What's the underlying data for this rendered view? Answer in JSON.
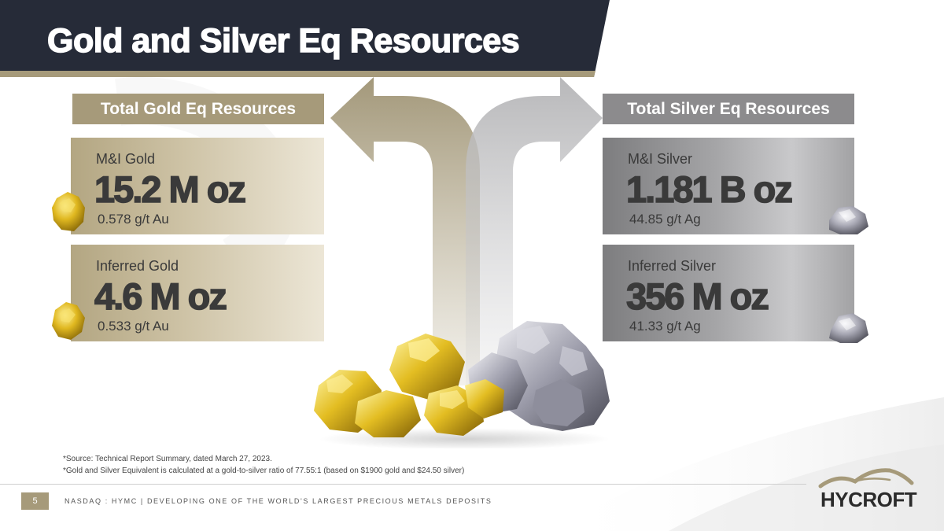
{
  "title": "Gold and Silver Eq Resources",
  "colors": {
    "navy": "#262b38",
    "gold_accent": "#a69a7a",
    "silver_accent": "#8c8b8d",
    "dark_text": "#3a3a3a"
  },
  "gold": {
    "header": "Total Gold Eq Resources",
    "cards": [
      {
        "label": "M&I Gold",
        "value": "15.2 M oz",
        "grade": "0.578 g/t Au"
      },
      {
        "label": "Inferred Gold",
        "value": "4.6 M oz",
        "grade": "0.533 g/t Au"
      }
    ]
  },
  "silver": {
    "header": "Total Silver Eq Resources",
    "cards": [
      {
        "label": "M&I Silver",
        "value": "1.181 B oz",
        "grade": "44.85 g/t Ag"
      },
      {
        "label": "Inferred Silver",
        "value": "356 M oz",
        "grade": "41.33 g/t Ag"
      }
    ]
  },
  "footnotes": [
    "*Source: Technical Report Summary, dated March 27, 2023.",
    "*Gold and Silver Equivalent is calculated at a gold-to-silver ratio of 77.55:1 (based on $1900 gold and $24.50 silver)"
  ],
  "footer": {
    "page_number": "5",
    "text": "NASDAQ  :  HYMC   |   DEVELOPING ONE OF THE WORLD'S LARGEST PRECIOUS METALS DEPOSITS"
  },
  "logo": {
    "text": "HYCROFT"
  }
}
